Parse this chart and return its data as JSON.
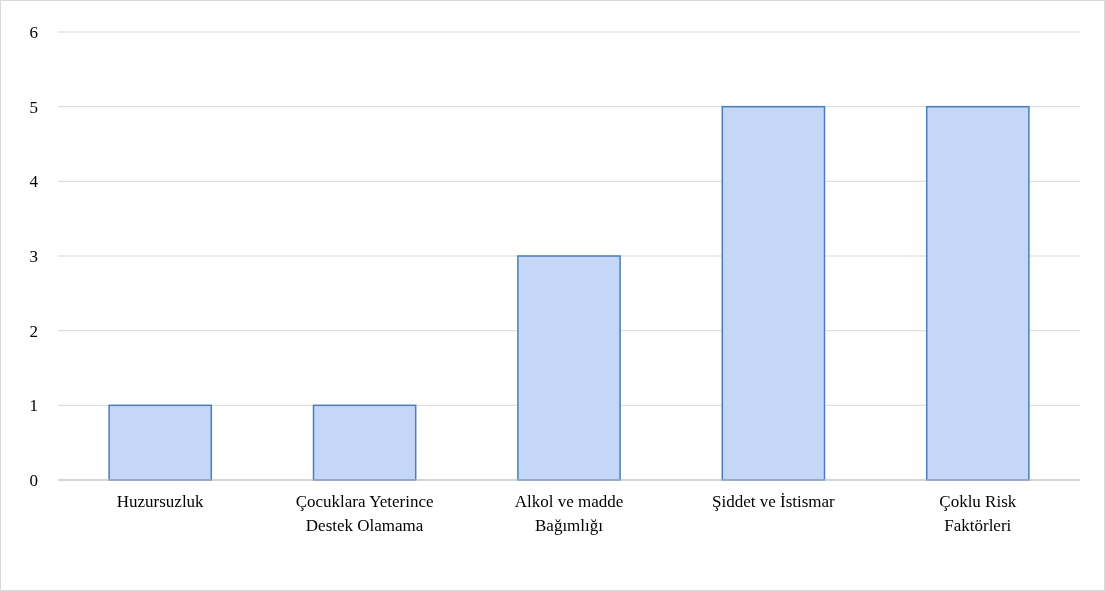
{
  "chart_data": {
    "type": "bar",
    "categories": [
      "Huzursuzluk",
      "Çocuklara Yeterince Destek Olamama",
      "Alkol ve madde Bağımlığı",
      "Şiddet ve İstismar",
      "Çoklu Risk Faktörleri"
    ],
    "values": [
      1,
      1,
      3,
      5,
      5
    ],
    "color": "#c4d7f9",
    "ylim": [
      0,
      6
    ],
    "yticks": [
      0,
      1,
      2,
      3,
      4,
      5,
      6
    ],
    "grid": "y"
  }
}
